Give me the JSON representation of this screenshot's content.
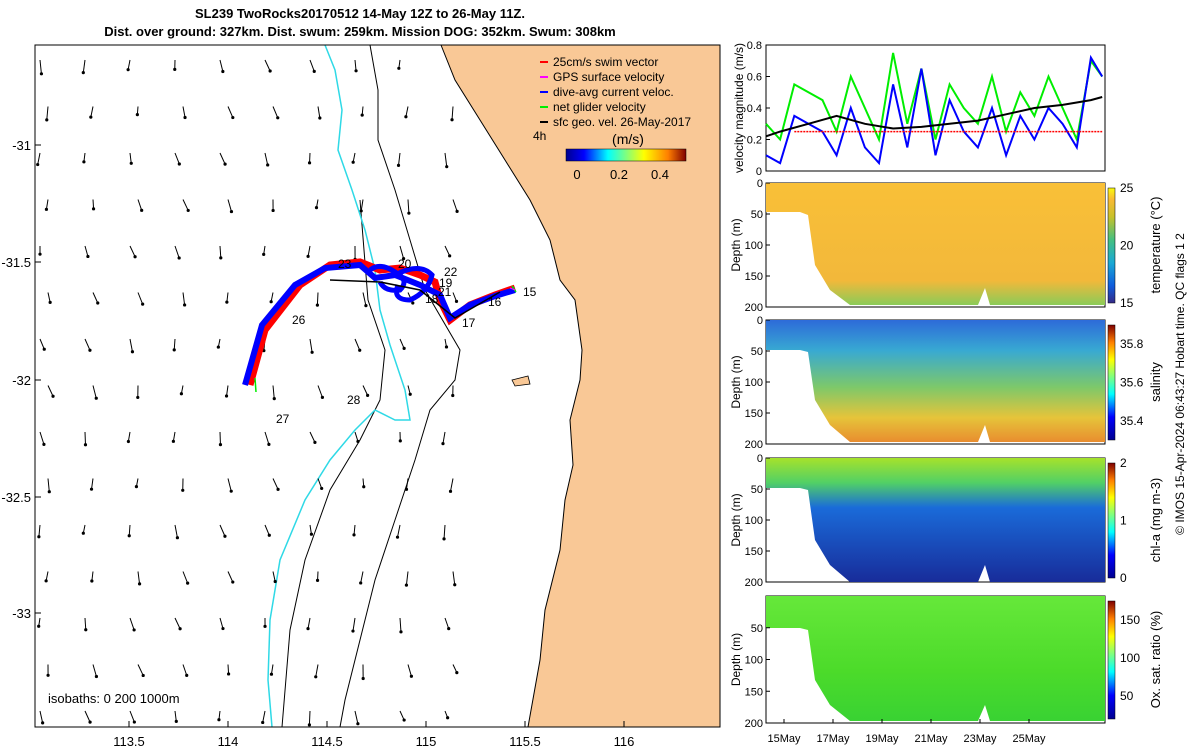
{
  "colors": {
    "land": "#F9C896",
    "sea": "#FFFFFF",
    "isobath_shallow": "#2FD9E6",
    "isobath_deep": "#000000",
    "swim_vector": "#FF0000",
    "gps_velocity": "#FF00FF",
    "dive_avg": "#0000FF",
    "net_glider": "#00EE00",
    "sfc_geo": "#000000"
  },
  "header": {
    "line1": "SL239 TwoRocks20170512 14-May 12Z to 26-May 11Z.",
    "line2": "Dist. over ground: 327km. Dist. swum: 259km. Mission DOG: 352km. Swum: 308km"
  },
  "map": {
    "x_ticks": [
      "113.5",
      "114",
      "114.5",
      "115",
      "115.5",
      "116"
    ],
    "y_ticks": [
      "-31",
      "-31.5",
      "-32",
      "-32.5",
      "-33"
    ],
    "legend": [
      {
        "label": "25cm/s swim vector",
        "color": "#FF0000"
      },
      {
        "label": "GPS surface velocity",
        "color": "#FF00FF"
      },
      {
        "label": "dive-avg current veloc.",
        "color": "#0000FF"
      },
      {
        "label": "net glider velocity",
        "color": "#00EE00"
      },
      {
        "label": "sfc geo. vel. 26-May-2017",
        "color": "#000000"
      }
    ],
    "colorbar_unit": "(m/s)",
    "colorbar_note": "4h",
    "colorbar_ticks": [
      "0",
      "0.2",
      "0.4"
    ],
    "isobath_label": "isobaths: 0   200  1000m",
    "day_labels": [
      "15",
      "16",
      "17",
      "18",
      "19",
      "20",
      "21",
      "22",
      "23",
      "26",
      "27",
      "28"
    ]
  },
  "side_note": "© IMOS 15-Apr-2024 06:43:27 Hobart time. QC flags 1  2",
  "chart_data": [
    {
      "type": "line",
      "title": "",
      "ylabel": "velocity magnitude (m/s)",
      "ylim": [
        0,
        0.8
      ],
      "y_ticks": [
        "0",
        "0.2",
        "0.4",
        "0.6",
        "0.8"
      ],
      "xlim_days": [
        14.5,
        26.5
      ],
      "series": [
        {
          "name": "net glider velocity",
          "color": "#00EE00",
          "x": [
            14.5,
            15,
            15.5,
            16,
            16.5,
            17,
            17.5,
            18,
            18.5,
            19,
            19.5,
            20,
            20.5,
            21,
            21.5,
            22,
            22.5,
            23,
            23.5,
            24,
            24.5,
            25,
            25.5,
            26,
            26.4
          ],
          "values": [
            0.3,
            0.2,
            0.55,
            0.5,
            0.45,
            0.25,
            0.6,
            0.4,
            0.2,
            0.75,
            0.3,
            0.65,
            0.2,
            0.55,
            0.4,
            0.3,
            0.6,
            0.25,
            0.5,
            0.35,
            0.6,
            0.4,
            0.2,
            0.7,
            0.6
          ]
        },
        {
          "name": "dive-avg current veloc.",
          "color": "#0000FF",
          "x": [
            14.5,
            15,
            15.5,
            16,
            16.5,
            17,
            17.5,
            18,
            18.5,
            19,
            19.5,
            20,
            20.5,
            21,
            21.5,
            22,
            22.5,
            23,
            23.5,
            24,
            24.5,
            25,
            25.5,
            26,
            26.4
          ],
          "values": [
            0.1,
            0.05,
            0.35,
            0.3,
            0.25,
            0.1,
            0.4,
            0.15,
            0.05,
            0.55,
            0.15,
            0.65,
            0.1,
            0.45,
            0.25,
            0.15,
            0.4,
            0.1,
            0.35,
            0.2,
            0.4,
            0.3,
            0.15,
            0.72,
            0.6
          ]
        },
        {
          "name": "sfc geo. vel.",
          "color": "#000000",
          "x": [
            14.5,
            15,
            16,
            17,
            18,
            19,
            20,
            21,
            22,
            23,
            24,
            25,
            26,
            26.4
          ],
          "values": [
            0.22,
            0.25,
            0.3,
            0.35,
            0.3,
            0.27,
            0.28,
            0.3,
            0.32,
            0.36,
            0.4,
            0.42,
            0.45,
            0.47
          ]
        },
        {
          "name": "25cm/s swim vector",
          "color": "#FF0000",
          "x": [
            15.5,
            26.4
          ],
          "values": [
            0.25,
            0.25
          ]
        }
      ]
    },
    {
      "type": "heatmap",
      "ylabel": "Depth (m)",
      "colorbar_label": "temperature (°C)",
      "colorbar_ticks": [
        "15",
        "20",
        "25"
      ],
      "y_ticks": [
        "0",
        "50",
        "100",
        "150",
        "200"
      ],
      "zlim": [
        15,
        25
      ]
    },
    {
      "type": "heatmap",
      "ylabel": "Depth (m)",
      "colorbar_label": "salinity",
      "colorbar_ticks": [
        "35.4",
        "35.6",
        "35.8"
      ],
      "y_ticks": [
        "0",
        "50",
        "100",
        "150",
        "200"
      ],
      "zlim": [
        35.3,
        35.9
      ]
    },
    {
      "type": "heatmap",
      "ylabel": "Depth (m)",
      "colorbar_label": "chl-a (mg m-3)",
      "colorbar_ticks": [
        "0",
        "1",
        "2"
      ],
      "y_ticks": [
        "0",
        "50",
        "100",
        "150",
        "200"
      ],
      "zlim": [
        0,
        2
      ]
    },
    {
      "type": "heatmap",
      "ylabel": "Depth (m)",
      "colorbar_label": "Ox. sat. ratio (%)",
      "colorbar_ticks": [
        "50",
        "100",
        "150"
      ],
      "y_ticks": [
        "50",
        "100",
        "150",
        "200"
      ],
      "zlim": [
        20,
        175
      ],
      "x_ticks": [
        "15May",
        "17May",
        "19May",
        "21May",
        "23May",
        "25May"
      ]
    }
  ]
}
